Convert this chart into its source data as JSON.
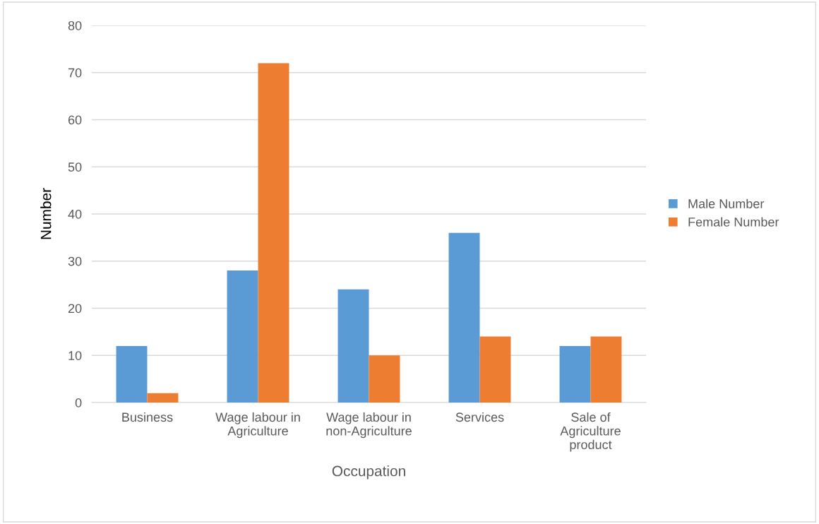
{
  "chart_data": {
    "type": "bar",
    "xlabel": "Occupation",
    "ylabel": "Number",
    "categories": [
      "Business",
      "Wage labour in\nAgriculture",
      "Wage labour in\nnon-Agriculture",
      "Services",
      "Sale of\nAgriculture\nproduct"
    ],
    "series": [
      {
        "name": "Male Number",
        "color": "#5b9bd5",
        "values": [
          12,
          28,
          24,
          36,
          12
        ]
      },
      {
        "name": "Female Number",
        "color": "#ed7d31",
        "values": [
          2,
          72,
          10,
          14,
          14
        ]
      }
    ],
    "ylim": [
      0,
      80
    ],
    "yticks": [
      0,
      10,
      20,
      30,
      40,
      50,
      60,
      70,
      80
    ],
    "grid": "y",
    "legend": "right"
  }
}
